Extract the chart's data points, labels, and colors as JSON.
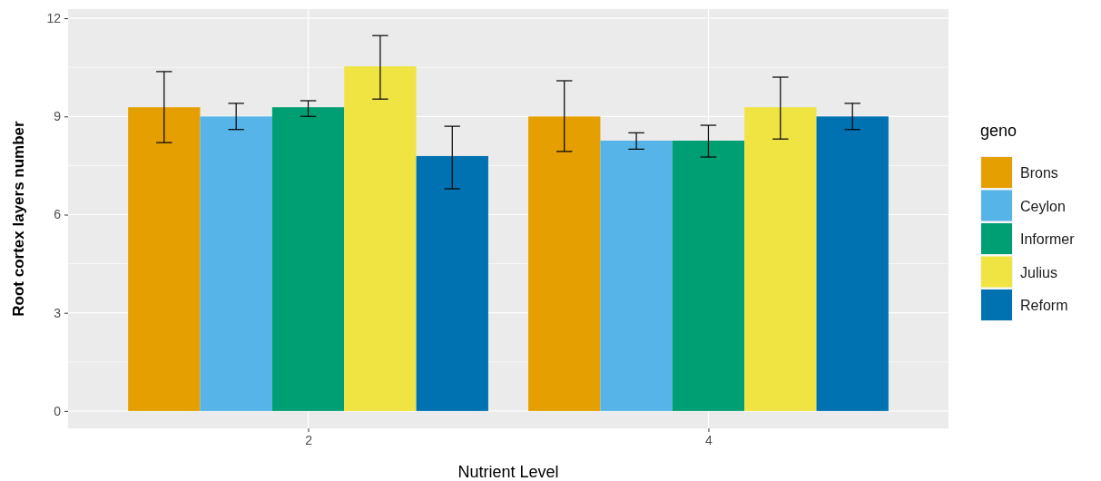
{
  "chart_data": {
    "type": "bar",
    "xlabel": "Nutrient Level",
    "ylabel": "Root cortex layers number",
    "legend_title": "geno",
    "categories": [
      "2",
      "4"
    ],
    "series": [
      {
        "name": "Brons",
        "color": "#e69f00",
        "values": [
          9.28,
          9.0
        ],
        "errors": [
          [
            8.2,
            10.37
          ],
          [
            7.93,
            10.09
          ]
        ]
      },
      {
        "name": "Ceylon",
        "color": "#56b4e9",
        "values": [
          9.0,
          8.26
        ],
        "errors": [
          [
            8.6,
            9.4
          ],
          [
            8.0,
            8.5
          ]
        ]
      },
      {
        "name": "Informer",
        "color": "#009e73",
        "values": [
          9.28,
          8.26
        ],
        "errors": [
          [
            9.0,
            9.48
          ],
          [
            7.76,
            8.73
          ]
        ]
      },
      {
        "name": "Julius",
        "color": "#f0e442",
        "values": [
          10.53,
          9.28
        ],
        "errors": [
          [
            9.53,
            11.47
          ],
          [
            8.31,
            10.2
          ]
        ]
      },
      {
        "name": "Reform",
        "color": "#0072b2",
        "values": [
          7.79,
          9.0
        ],
        "errors": [
          [
            6.79,
            8.7
          ],
          [
            8.6,
            9.4
          ]
        ]
      }
    ],
    "ylim": [
      -0.53,
      12.28
    ],
    "yticks": [
      0,
      3,
      6,
      9,
      12
    ],
    "grid": true,
    "legend": "right"
  }
}
